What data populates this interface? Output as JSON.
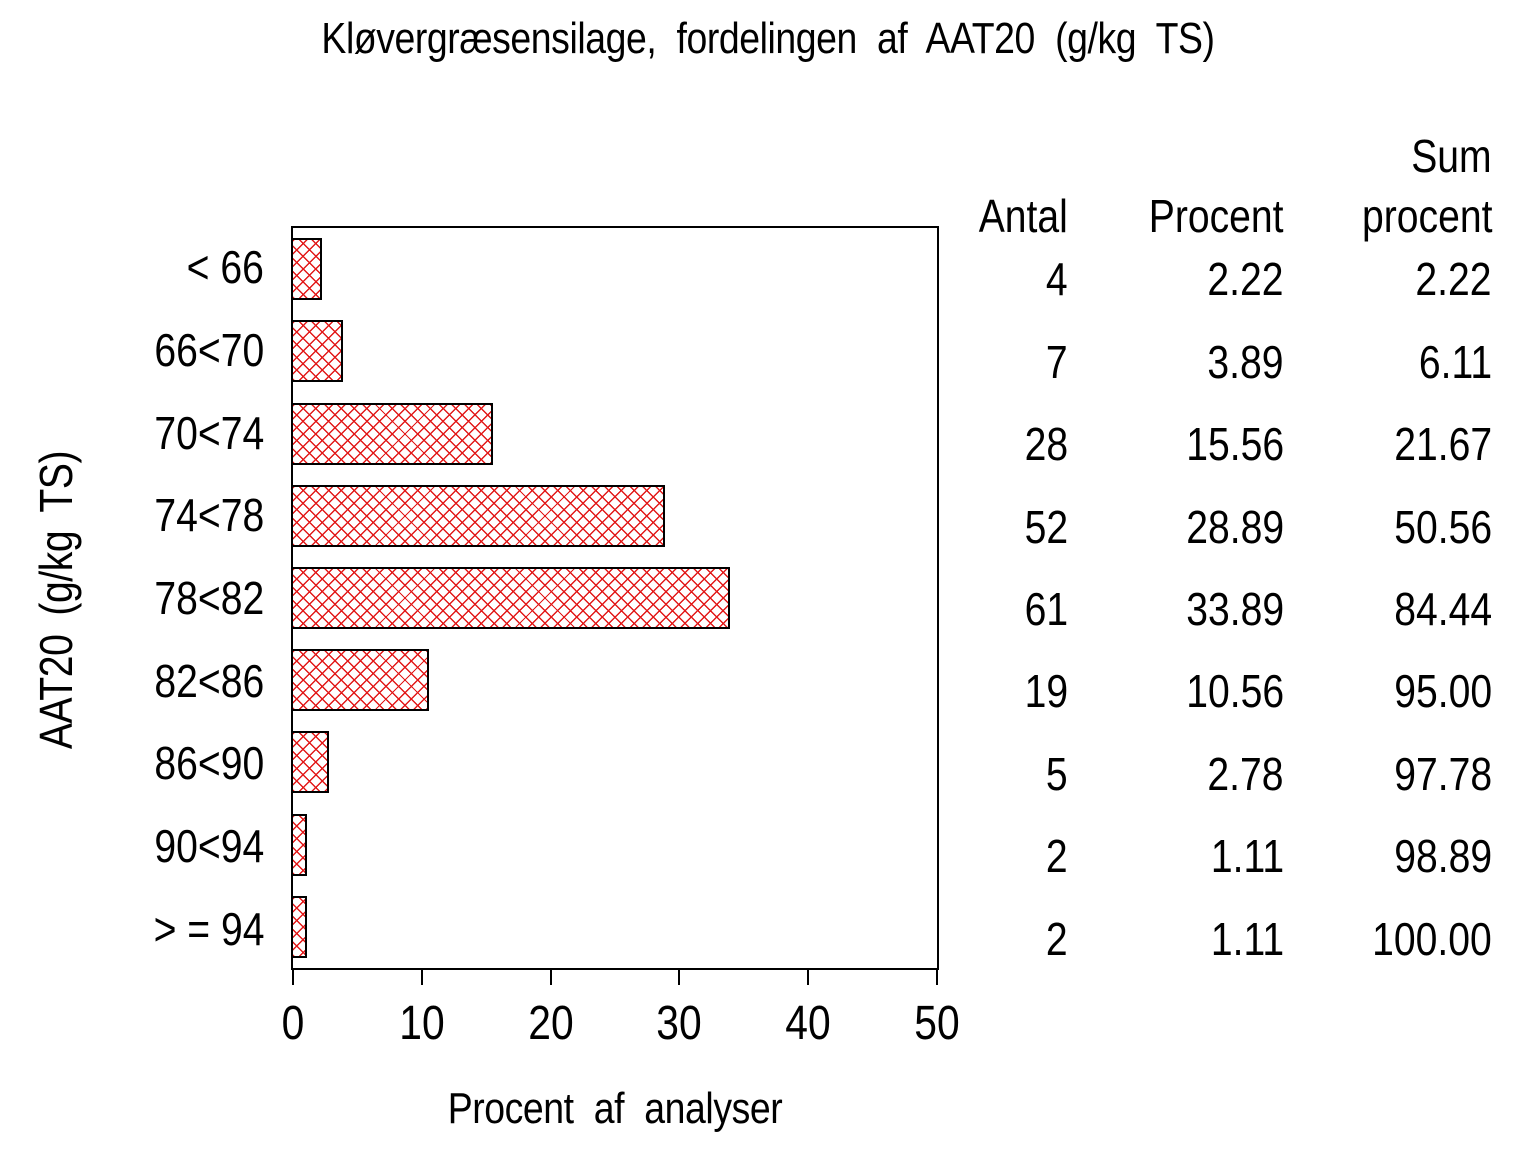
{
  "title": "Kløvergræsensilage, fordelingen af AAT20 (g/kg TS)",
  "x_axis_label": "Procent af analyser",
  "y_axis_label": "AAT20 (g/kg TS)",
  "table": {
    "headers": {
      "antal": "Antal",
      "procent": "Procent",
      "sum_line1": "Sum",
      "sum_line2": "procent"
    }
  },
  "chart_data": {
    "type": "bar",
    "orientation": "horizontal",
    "title": "Kløvergræsensilage, fordelingen af AAT20 (g/kg TS)",
    "xlabel": "Procent af analyser",
    "ylabel": "AAT20 (g/kg TS)",
    "categories": [
      "< 66",
      "66<70",
      "70<74",
      "74<78",
      "78<82",
      "82<86",
      "86<90",
      "90<94",
      "> = 94"
    ],
    "values": [
      2.22,
      3.89,
      15.56,
      28.89,
      33.89,
      10.56,
      2.78,
      1.11,
      1.11
    ],
    "counts": [
      4,
      7,
      28,
      52,
      61,
      19,
      5,
      2,
      2
    ],
    "percent_labels": [
      "2.22",
      "3.89",
      "15.56",
      "28.89",
      "33.89",
      "10.56",
      "2.78",
      "1.11",
      "1.11"
    ],
    "cum_labels": [
      "2.22",
      "6.11",
      "21.67",
      "50.56",
      "84.44",
      "95.00",
      "97.78",
      "98.89",
      "100.00"
    ],
    "xlim": [
      0,
      50
    ],
    "xticks": [
      "0",
      "10",
      "20",
      "30",
      "40",
      "50"
    ],
    "grid": false,
    "legend": "none",
    "bar_fill": "crosshatch",
    "bar_color": "#e21919",
    "bar_border_color": "#000000",
    "frame_color": "#000000",
    "background_color": "#ffffff"
  }
}
